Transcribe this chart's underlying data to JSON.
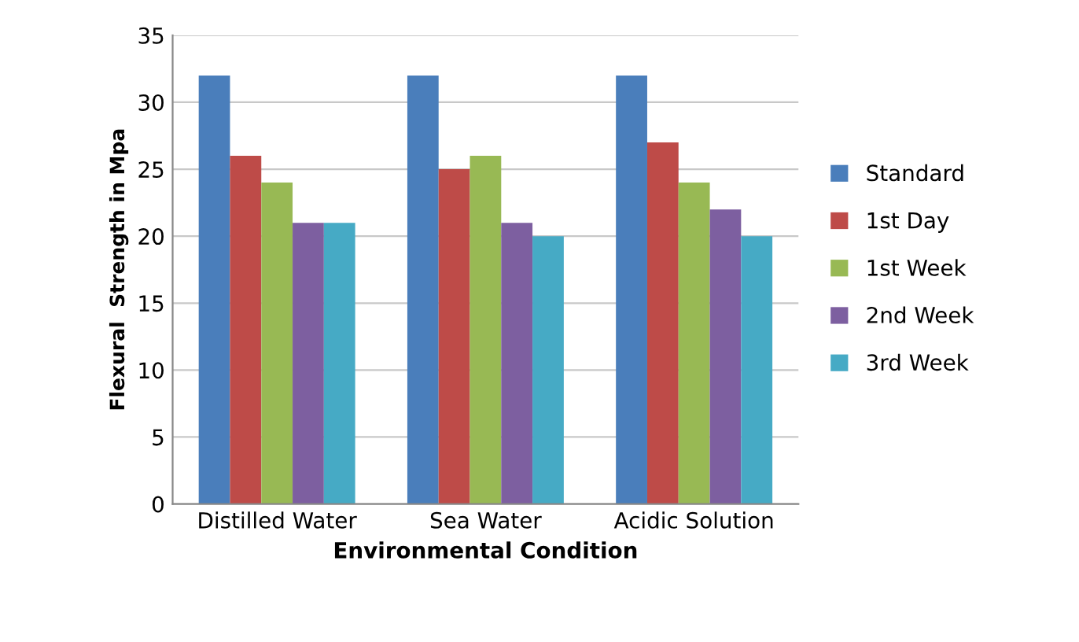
{
  "chart_data": {
    "type": "bar",
    "xlabel": "Environmental Condition",
    "ylabel": "Flexural  Strength in Mpa",
    "categories": [
      "Distilled Water",
      "Sea Water",
      "Acidic Solution"
    ],
    "series": [
      {
        "name": "Standard",
        "color": "#4a7ebb",
        "values": [
          32,
          32,
          32
        ]
      },
      {
        "name": "1st Day",
        "color": "#be4b48",
        "values": [
          26,
          25,
          27
        ]
      },
      {
        "name": "1st Week",
        "color": "#98b954",
        "values": [
          24,
          26,
          24
        ]
      },
      {
        "name": "2nd Week",
        "color": "#7d5fa0",
        "values": [
          21,
          21,
          22
        ]
      },
      {
        "name": "3rd Week",
        "color": "#46aac5",
        "values": [
          21,
          20,
          20
        ]
      }
    ],
    "ylim": [
      0,
      35
    ],
    "yticks": [
      0,
      5,
      10,
      15,
      20,
      25,
      30,
      35
    ],
    "grid": "y",
    "legend": "right"
  }
}
